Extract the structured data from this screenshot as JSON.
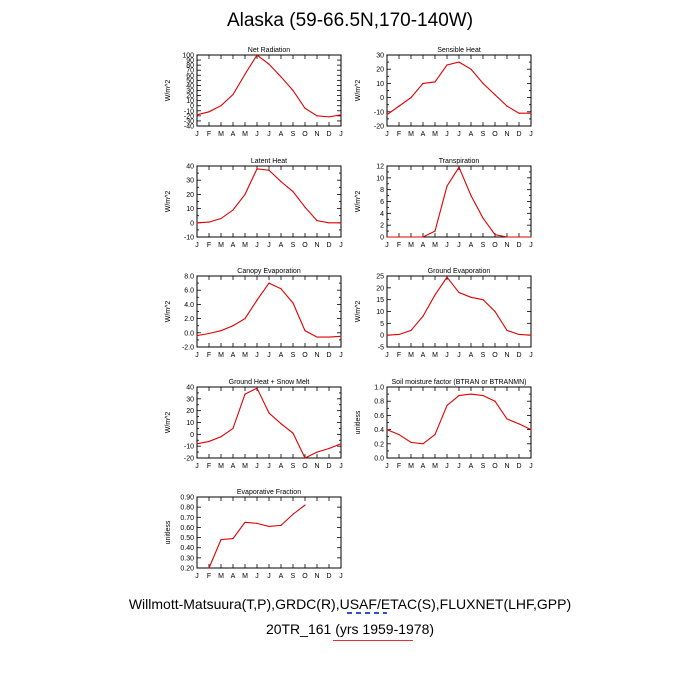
{
  "title": "Alaska (59-66.5N,170-140W)",
  "footer": {
    "sources": "Willmott-Matsuura(T,P),GRDC(R),USAF/ETAC(S),FLUXNET(LHF,GPP)",
    "model": "20TR_161 (yrs 1959-1978)"
  },
  "colors": {
    "line": "#e00000",
    "axis": "#000000"
  },
  "chart_data": [
    {
      "type": "line",
      "title": "Net Radiation",
      "ylabel": "W/m^2",
      "categories": [
        "J",
        "F",
        "M",
        "A",
        "M",
        "J",
        "J",
        "A",
        "S",
        "O",
        "N",
        "D",
        "J"
      ],
      "ylim": [
        -40,
        100
      ],
      "yticks": [
        -40,
        -30,
        -20,
        -10,
        0,
        10,
        20,
        30,
        40,
        50,
        60,
        70,
        80,
        90,
        100
      ],
      "ytick_labels": [
        "-40",
        "-30",
        "-20",
        "-10",
        "0",
        "10",
        "20",
        "30",
        "40",
        "50",
        "60",
        "70",
        "80",
        "90",
        "100"
      ],
      "values": [
        -18,
        -12,
        0,
        22,
        62,
        100,
        82,
        57,
        30,
        -5,
        -20,
        -22,
        -18
      ]
    },
    {
      "type": "line",
      "title": "Sensible Heat",
      "ylabel": "W/m^2",
      "categories": [
        "J",
        "F",
        "M",
        "A",
        "M",
        "J",
        "J",
        "A",
        "S",
        "O",
        "N",
        "D",
        "J"
      ],
      "ylim": [
        -20,
        30
      ],
      "yticks": [
        -20,
        -15,
        -10,
        -5,
        0,
        5,
        10,
        15,
        20,
        25,
        30
      ],
      "ytick_labels": [
        "-20",
        "",
        "-10",
        "",
        "0",
        "",
        "10",
        "",
        "20",
        "",
        "30"
      ],
      "values": [
        -12,
        -6,
        0,
        10,
        11,
        23,
        25,
        20,
        10,
        2,
        -6,
        -11,
        -11
      ]
    },
    {
      "type": "line",
      "title": "Latent Heat",
      "ylabel": "W/m^2",
      "categories": [
        "J",
        "F",
        "M",
        "A",
        "M",
        "J",
        "J",
        "A",
        "S",
        "O",
        "N",
        "D",
        "J"
      ],
      "ylim": [
        -10,
        40
      ],
      "yticks": [
        -10,
        -5,
        0,
        5,
        10,
        15,
        20,
        25,
        30,
        35,
        40
      ],
      "ytick_labels": [
        "-10",
        "",
        "0",
        "",
        "10",
        "",
        "20",
        "",
        "30",
        "",
        "40"
      ],
      "values": [
        0,
        0.5,
        3,
        9,
        20,
        38,
        37,
        29,
        22,
        11,
        1.5,
        0,
        0
      ]
    },
    {
      "type": "line",
      "title": "Transpiration",
      "ylabel": "W/m^2",
      "categories": [
        "J",
        "F",
        "M",
        "A",
        "M",
        "J",
        "J",
        "A",
        "S",
        "O",
        "N",
        "D",
        "J"
      ],
      "ylim": [
        0,
        12
      ],
      "yticks": [
        0,
        1,
        2,
        3,
        4,
        5,
        6,
        7,
        8,
        9,
        10,
        11,
        12
      ],
      "ytick_labels": [
        "0",
        "",
        "2",
        "",
        "4",
        "",
        "6",
        "",
        "8",
        "",
        "10",
        "",
        "12"
      ],
      "values": [
        0,
        0,
        0,
        0,
        1,
        8.6,
        11.8,
        7,
        3.2,
        0.4,
        0,
        0,
        0
      ]
    },
    {
      "type": "line",
      "title": "Canopy Evaporation",
      "ylabel": "W/m^2",
      "categories": [
        "J",
        "F",
        "M",
        "A",
        "M",
        "J",
        "J",
        "A",
        "S",
        "O",
        "N",
        "D",
        "J"
      ],
      "ylim": [
        -2,
        8
      ],
      "yticks": [
        -2,
        -1,
        0,
        1,
        2,
        3,
        4,
        5,
        6,
        7,
        8
      ],
      "ytick_labels": [
        "-2.0",
        "",
        "0.0",
        "",
        "2.0",
        "",
        "4.0",
        "",
        "6.0",
        "",
        "8.0"
      ],
      "values": [
        -0.4,
        -0.1,
        0.3,
        1,
        2,
        4.6,
        7,
        6.2,
        4.2,
        0.3,
        -0.6,
        -0.6,
        -0.5
      ]
    },
    {
      "type": "line",
      "title": "Ground Evaporation",
      "ylabel": "W/m^2",
      "categories": [
        "J",
        "F",
        "M",
        "A",
        "M",
        "J",
        "J",
        "A",
        "S",
        "O",
        "N",
        "D",
        "J"
      ],
      "ylim": [
        -5,
        25
      ],
      "yticks": [
        -5,
        0,
        5,
        10,
        15,
        20,
        25
      ],
      "ytick_labels": [
        "-5",
        "0",
        "5",
        "10",
        "15",
        "20",
        "25"
      ],
      "values": [
        0,
        0.3,
        2,
        8,
        17,
        24.5,
        18,
        16,
        15,
        10,
        2,
        0.3,
        0
      ]
    },
    {
      "type": "line",
      "title": "Ground Heat + Snow Melt",
      "ylabel": "W/m^2",
      "categories": [
        "J",
        "F",
        "M",
        "A",
        "M",
        "J",
        "J",
        "A",
        "S",
        "O",
        "N",
        "D",
        "J"
      ],
      "ylim": [
        -20,
        40
      ],
      "yticks": [
        -20,
        -15,
        -10,
        -5,
        0,
        5,
        10,
        15,
        20,
        25,
        30,
        35,
        40
      ],
      "ytick_labels": [
        "-20",
        "",
        "-10",
        "",
        "0",
        "",
        "10",
        "",
        "20",
        "",
        "30",
        "",
        "40"
      ],
      "values": [
        -8,
        -6,
        -2,
        5,
        34,
        39,
        18,
        9,
        1,
        -20,
        -15,
        -12,
        -8
      ]
    },
    {
      "type": "line",
      "title": "Soil moisture factor (BTRAN or BTRANMN)",
      "ylabel": "unitless",
      "categories": [
        "J",
        "F",
        "M",
        "A",
        "M",
        "J",
        "J",
        "A",
        "S",
        "O",
        "N",
        "D",
        "J"
      ],
      "ylim": [
        0,
        1
      ],
      "yticks": [
        0,
        0.1,
        0.2,
        0.3,
        0.4,
        0.5,
        0.6,
        0.7,
        0.8,
        0.9,
        1.0
      ],
      "ytick_labels": [
        "0.0",
        "",
        "0.2",
        "",
        "0.4",
        "",
        "0.6",
        "",
        "0.8",
        "",
        "1.0"
      ],
      "values": [
        0.4,
        0.33,
        0.22,
        0.2,
        0.33,
        0.74,
        0.88,
        0.9,
        0.88,
        0.8,
        0.55,
        0.48,
        0.4
      ]
    },
    {
      "type": "line",
      "title": "Evaporative Fraction",
      "ylabel": "unitless",
      "categories": [
        "J",
        "F",
        "M",
        "A",
        "M",
        "J",
        "J",
        "A",
        "S",
        "O",
        "N",
        "D",
        "J"
      ],
      "ylim": [
        0.2,
        0.9
      ],
      "yticks": [
        0.2,
        0.3,
        0.4,
        0.5,
        0.6,
        0.7,
        0.8,
        0.9
      ],
      "ytick_labels": [
        "0.20",
        "0.30",
        "0.40",
        "0.50",
        "0.60",
        "0.70",
        "0.80",
        "0.90"
      ],
      "values": [
        null,
        0.2,
        0.48,
        0.49,
        0.65,
        0.64,
        0.61,
        0.62,
        0.73,
        0.82,
        null,
        null,
        null
      ]
    }
  ]
}
